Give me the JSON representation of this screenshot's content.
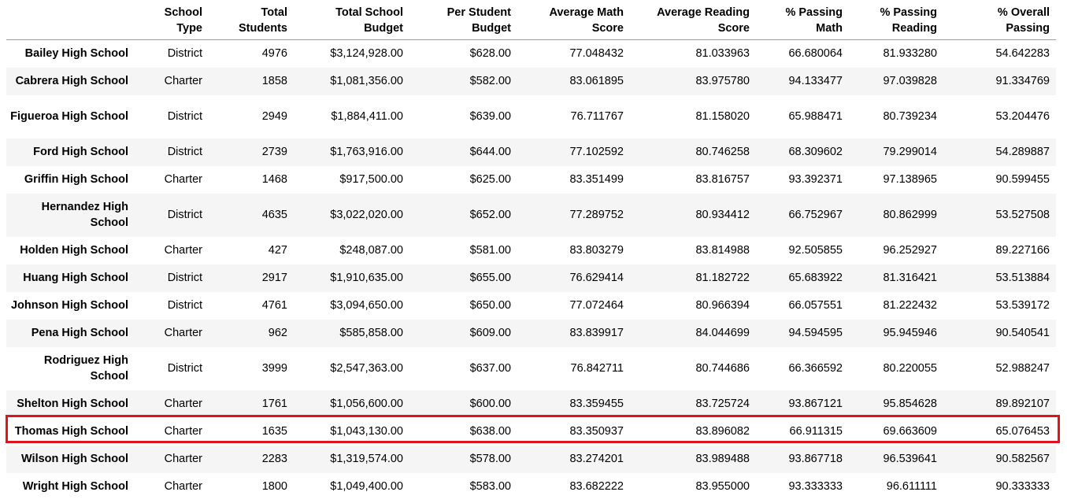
{
  "columns": [
    {
      "key": "index",
      "label": [
        "",
        ""
      ]
    },
    {
      "key": "type",
      "label": [
        "School",
        "Type"
      ]
    },
    {
      "key": "students",
      "label": [
        "Total",
        "Students"
      ]
    },
    {
      "key": "budget",
      "label": [
        "Total School",
        "Budget"
      ]
    },
    {
      "key": "per_student",
      "label": [
        "Per Student",
        "Budget"
      ]
    },
    {
      "key": "math",
      "label": [
        "Average Math",
        "Score"
      ]
    },
    {
      "key": "reading",
      "label": [
        "Average Reading",
        "Score"
      ]
    },
    {
      "key": "pass_math",
      "label": [
        "% Passing",
        "Math"
      ]
    },
    {
      "key": "pass_reading",
      "label": [
        "% Passing",
        "Reading"
      ]
    },
    {
      "key": "overall",
      "label": [
        "% Overall",
        "Passing"
      ]
    }
  ],
  "rows": [
    {
      "name": "Bailey High School",
      "type": "District",
      "students": "4976",
      "budget": "$3,124,928.00",
      "per_student": "$628.00",
      "math": "77.048432",
      "reading": "81.033963",
      "pass_math": "66.680064",
      "pass_reading": "81.933280",
      "overall": "54.642283"
    },
    {
      "name": "Cabrera High School",
      "type": "Charter",
      "students": "1858",
      "budget": "$1,081,356.00",
      "per_student": "$582.00",
      "math": "83.061895",
      "reading": "83.975780",
      "pass_math": "94.133477",
      "pass_reading": "97.039828",
      "overall": "91.334769"
    },
    {
      "name": "Figueroa High School",
      "type": "District",
      "students": "2949",
      "budget": "$1,884,411.00",
      "per_student": "$639.00",
      "math": "76.711767",
      "reading": "81.158020",
      "pass_math": "65.988471",
      "pass_reading": "80.739234",
      "overall": "53.204476"
    },
    {
      "name": "Ford High School",
      "type": "District",
      "students": "2739",
      "budget": "$1,763,916.00",
      "per_student": "$644.00",
      "math": "77.102592",
      "reading": "80.746258",
      "pass_math": "68.309602",
      "pass_reading": "79.299014",
      "overall": "54.289887"
    },
    {
      "name": "Griffin High School",
      "type": "Charter",
      "students": "1468",
      "budget": "$917,500.00",
      "per_student": "$625.00",
      "math": "83.351499",
      "reading": "83.816757",
      "pass_math": "93.392371",
      "pass_reading": "97.138965",
      "overall": "90.599455"
    },
    {
      "name": "Hernandez High School",
      "type": "District",
      "students": "4635",
      "budget": "$3,022,020.00",
      "per_student": "$652.00",
      "math": "77.289752",
      "reading": "80.934412",
      "pass_math": "66.752967",
      "pass_reading": "80.862999",
      "overall": "53.527508"
    },
    {
      "name": "Holden High School",
      "type": "Charter",
      "students": "427",
      "budget": "$248,087.00",
      "per_student": "$581.00",
      "math": "83.803279",
      "reading": "83.814988",
      "pass_math": "92.505855",
      "pass_reading": "96.252927",
      "overall": "89.227166"
    },
    {
      "name": "Huang High School",
      "type": "District",
      "students": "2917",
      "budget": "$1,910,635.00",
      "per_student": "$655.00",
      "math": "76.629414",
      "reading": "81.182722",
      "pass_math": "65.683922",
      "pass_reading": "81.316421",
      "overall": "53.513884"
    },
    {
      "name": "Johnson High School",
      "type": "District",
      "students": "4761",
      "budget": "$3,094,650.00",
      "per_student": "$650.00",
      "math": "77.072464",
      "reading": "80.966394",
      "pass_math": "66.057551",
      "pass_reading": "81.222432",
      "overall": "53.539172"
    },
    {
      "name": "Pena High School",
      "type": "Charter",
      "students": "962",
      "budget": "$585,858.00",
      "per_student": "$609.00",
      "math": "83.839917",
      "reading": "84.044699",
      "pass_math": "94.594595",
      "pass_reading": "95.945946",
      "overall": "90.540541"
    },
    {
      "name": "Rodriguez High School",
      "type": "District",
      "students": "3999",
      "budget": "$2,547,363.00",
      "per_student": "$637.00",
      "math": "76.842711",
      "reading": "80.744686",
      "pass_math": "66.366592",
      "pass_reading": "80.220055",
      "overall": "52.988247"
    },
    {
      "name": "Shelton High School",
      "type": "Charter",
      "students": "1761",
      "budget": "$1,056,600.00",
      "per_student": "$600.00",
      "math": "83.359455",
      "reading": "83.725724",
      "pass_math": "93.867121",
      "pass_reading": "95.854628",
      "overall": "89.892107"
    },
    {
      "name": "Thomas High School",
      "type": "Charter",
      "students": "1635",
      "budget": "$1,043,130.00",
      "per_student": "$638.00",
      "math": "83.350937",
      "reading": "83.896082",
      "pass_math": "66.911315",
      "pass_reading": "69.663609",
      "overall": "65.076453"
    },
    {
      "name": "Wilson High School",
      "type": "Charter",
      "students": "2283",
      "budget": "$1,319,574.00",
      "per_student": "$578.00",
      "math": "83.274201",
      "reading": "83.989488",
      "pass_math": "93.867718",
      "pass_reading": "96.539641",
      "overall": "90.582567"
    },
    {
      "name": "Wright High School",
      "type": "Charter",
      "students": "1800",
      "budget": "$1,049,400.00",
      "per_student": "$583.00",
      "math": "83.682222",
      "reading": "83.955000",
      "pass_math": "93.333333",
      "pass_reading": "96.611111",
      "overall": "90.333333"
    }
  ],
  "highlighted_row": "Thomas High School",
  "colors": {
    "highlight_border": "#e0141e",
    "stripe": "#f5f5f5",
    "header_rule": "#9e9e9e"
  }
}
